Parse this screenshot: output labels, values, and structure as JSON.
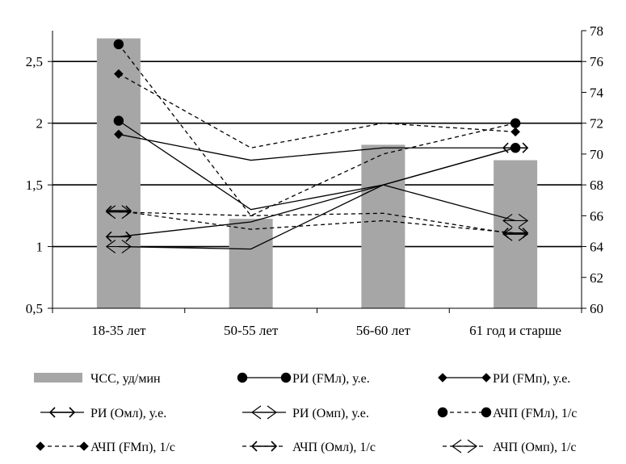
{
  "chart_data": {
    "type": "bar",
    "categories": [
      "18-35 лет",
      "50-55 лет",
      "56-60 лет",
      "61 год и старше"
    ],
    "y_left": {
      "min": 0.5,
      "max": 2.75,
      "ticks": [
        "0,5",
        "1",
        "1,5",
        "2",
        "2,5"
      ],
      "tick_values": [
        0.5,
        1,
        1.5,
        2,
        2.5
      ]
    },
    "y_right": {
      "min": 60,
      "max": 78,
      "ticks": [
        "60",
        "62",
        "64",
        "66",
        "68",
        "70",
        "72",
        "74",
        "76",
        "78"
      ],
      "tick_values": [
        60,
        62,
        64,
        66,
        68,
        70,
        72,
        74,
        76,
        78
      ]
    },
    "grid": "horizontal at left-axis major ticks",
    "legend_position": "bottom",
    "bar_series": {
      "name": "ЧСС, уд/мин",
      "axis": "right",
      "color": "#a6a6a6",
      "values": [
        77.5,
        65.8,
        70.6,
        69.6
      ]
    },
    "line_series": [
      {
        "name": "РИ (FMл), у.е.",
        "axis": "left",
        "dash": "solid",
        "marker": "circle",
        "values": [
          2.02,
          1.3,
          1.5,
          1.8
        ]
      },
      {
        "name": "РИ (FMп), у.е.",
        "axis": "left",
        "dash": "solid",
        "marker": "diamond",
        "values": [
          1.91,
          1.7,
          1.8,
          1.8
        ]
      },
      {
        "name": "РИ (Омл), у.е.",
        "axis": "left",
        "dash": "solid",
        "marker": "arrow",
        "values": [
          1.08,
          1.2,
          1.5,
          1.8
        ]
      },
      {
        "name": "РИ (Омп), у.е.",
        "axis": "left",
        "dash": "solid",
        "marker": "open-arrow",
        "values": [
          1.0,
          0.98,
          1.5,
          1.21
        ]
      },
      {
        "name": "АЧП (FMл), 1/с",
        "axis": "left",
        "dash": "dashed",
        "marker": "circle",
        "values": [
          2.64,
          1.25,
          1.75,
          2.0
        ]
      },
      {
        "name": "АЧП (FMп), 1/с",
        "axis": "left",
        "dash": "dashed",
        "marker": "diamond",
        "values": [
          2.4,
          1.8,
          2.0,
          1.93
        ]
      },
      {
        "name": "АЧП (Омл), 1/с",
        "axis": "left",
        "dash": "dashed",
        "marker": "arrow",
        "values": [
          1.29,
          1.14,
          1.21,
          1.11
        ]
      },
      {
        "name": "АЧП (Омп), 1/с",
        "axis": "left",
        "dash": "dashed",
        "marker": "open-arrow",
        "values": [
          1.28,
          1.25,
          1.27,
          1.1
        ]
      }
    ]
  }
}
